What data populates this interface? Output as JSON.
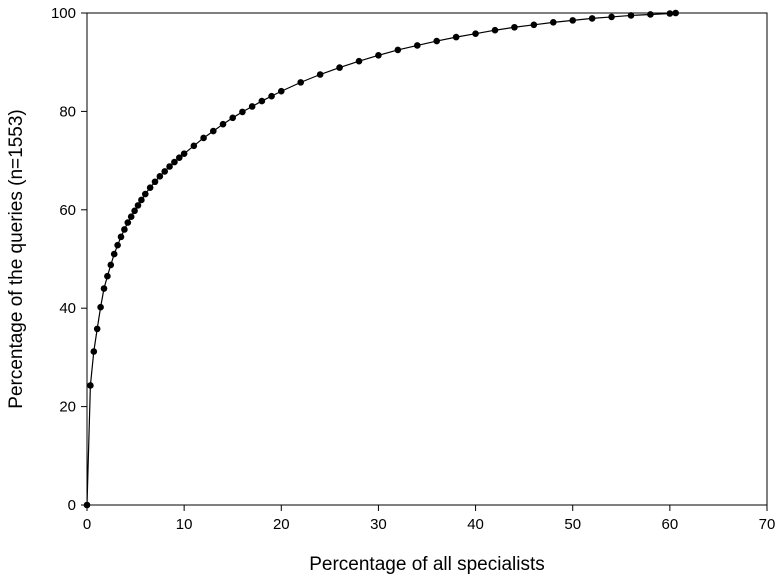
{
  "chart_data": {
    "type": "line",
    "title": "",
    "xlabel": "Percentage of all specialists",
    "ylabel": "Percentage of the queries (n=1553)",
    "xlim": [
      0,
      70
    ],
    "ylim": [
      0,
      100
    ],
    "xticks": [
      0,
      10,
      20,
      30,
      40,
      50,
      60,
      70
    ],
    "yticks": [
      0,
      20,
      40,
      60,
      80,
      100
    ],
    "grid": false,
    "legend": "none",
    "marker": "filled-circle",
    "line_color": "#000000",
    "series": [
      {
        "name": "",
        "x": [
          0,
          0.35,
          0.7,
          1.05,
          1.4,
          1.75,
          2.1,
          2.45,
          2.8,
          3.15,
          3.5,
          3.85,
          4.2,
          4.55,
          4.9,
          5.25,
          5.6,
          6.0,
          6.5,
          7.0,
          7.5,
          8.0,
          8.5,
          9.0,
          9.5,
          10.0,
          11.0,
          12.0,
          13.0,
          14.0,
          15.0,
          16.0,
          17.0,
          18.0,
          19.0,
          20.0,
          22.0,
          24.0,
          26.0,
          28.0,
          30.0,
          32.0,
          34.0,
          36.0,
          38.0,
          40.0,
          42.0,
          44.0,
          46.0,
          48.0,
          50.0,
          52.0,
          54.0,
          56.0,
          58.0,
          60.0,
          60.6
        ],
        "y": [
          0,
          24.3,
          31.2,
          35.8,
          40.2,
          44.0,
          46.5,
          48.8,
          51.0,
          52.8,
          54.5,
          56.0,
          57.4,
          58.6,
          59.8,
          60.9,
          62.0,
          63.2,
          64.5,
          65.7,
          66.8,
          67.8,
          68.8,
          69.7,
          70.6,
          71.4,
          73.0,
          74.6,
          76.0,
          77.4,
          78.7,
          79.9,
          81.0,
          82.1,
          83.1,
          84.1,
          85.9,
          87.5,
          88.9,
          90.2,
          91.4,
          92.5,
          93.4,
          94.3,
          95.1,
          95.8,
          96.5,
          97.1,
          97.6,
          98.1,
          98.5,
          98.9,
          99.2,
          99.5,
          99.7,
          99.9,
          100.0
        ]
      }
    ]
  }
}
